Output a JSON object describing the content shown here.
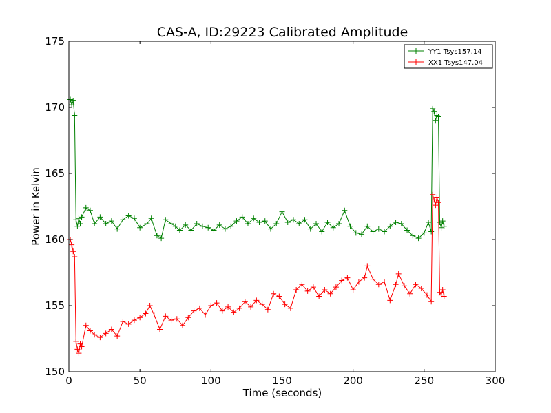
{
  "chart_data": {
    "type": "line",
    "title": "CAS-A, ID:29223 Calibrated Amplitude",
    "xlabel": "Time (seconds)",
    "ylabel": "Power in Kelvin",
    "xlim": [
      0,
      300
    ],
    "ylim": [
      150,
      175
    ],
    "xticks": [
      0,
      50,
      100,
      150,
      200,
      250,
      300
    ],
    "yticks": [
      150,
      155,
      160,
      165,
      170,
      175
    ],
    "grid": false,
    "legend_position": "top-right",
    "marker": "+",
    "series": [
      {
        "name": "YY1 Tsys157.14",
        "color": "#008000",
        "points": [
          [
            1,
            170.6
          ],
          [
            2,
            170.2
          ],
          [
            3,
            170.5
          ],
          [
            4,
            169.4
          ],
          [
            5,
            161.5
          ],
          [
            6,
            161.0
          ],
          [
            7,
            161.6
          ],
          [
            8,
            161.2
          ],
          [
            9,
            161.7
          ],
          [
            12,
            162.4
          ],
          [
            15,
            162.2
          ],
          [
            18,
            161.2
          ],
          [
            22,
            161.7
          ],
          [
            26,
            161.2
          ],
          [
            30,
            161.4
          ],
          [
            34,
            160.8
          ],
          [
            38,
            161.5
          ],
          [
            42,
            161.8
          ],
          [
            46,
            161.6
          ],
          [
            50,
            160.9
          ],
          [
            55,
            161.2
          ],
          [
            58,
            161.6
          ],
          [
            62,
            160.3
          ],
          [
            65,
            160.1
          ],
          [
            68,
            161.5
          ],
          [
            72,
            161.2
          ],
          [
            75,
            161.0
          ],
          [
            78,
            160.7
          ],
          [
            82,
            161.1
          ],
          [
            86,
            160.7
          ],
          [
            90,
            161.2
          ],
          [
            94,
            161.0
          ],
          [
            98,
            160.9
          ],
          [
            102,
            160.7
          ],
          [
            106,
            161.1
          ],
          [
            110,
            160.8
          ],
          [
            114,
            161.0
          ],
          [
            118,
            161.4
          ],
          [
            122,
            161.7
          ],
          [
            126,
            161.2
          ],
          [
            130,
            161.6
          ],
          [
            134,
            161.3
          ],
          [
            138,
            161.4
          ],
          [
            142,
            160.8
          ],
          [
            146,
            161.2
          ],
          [
            150,
            162.1
          ],
          [
            154,
            161.3
          ],
          [
            158,
            161.5
          ],
          [
            162,
            161.2
          ],
          [
            166,
            161.5
          ],
          [
            170,
            160.8
          ],
          [
            174,
            161.2
          ],
          [
            178,
            160.6
          ],
          [
            182,
            161.3
          ],
          [
            186,
            160.9
          ],
          [
            190,
            161.2
          ],
          [
            194,
            162.2
          ],
          [
            198,
            161.0
          ],
          [
            202,
            160.5
          ],
          [
            206,
            160.4
          ],
          [
            210,
            161.0
          ],
          [
            214,
            160.6
          ],
          [
            218,
            160.8
          ],
          [
            222,
            160.6
          ],
          [
            226,
            161.0
          ],
          [
            230,
            161.3
          ],
          [
            234,
            161.2
          ],
          [
            238,
            160.7
          ],
          [
            242,
            160.3
          ],
          [
            246,
            160.1
          ],
          [
            250,
            160.5
          ],
          [
            253,
            161.3
          ],
          [
            255,
            160.6
          ],
          [
            256,
            169.9
          ],
          [
            257,
            169.7
          ],
          [
            258,
            169.0
          ],
          [
            259,
            169.4
          ],
          [
            260,
            169.3
          ],
          [
            261,
            161.3
          ],
          [
            262,
            160.9
          ],
          [
            263,
            161.4
          ],
          [
            264,
            161.0
          ]
        ]
      },
      {
        "name": "XX1 Tsys147.04",
        "color": "#ff0000",
        "points": [
          [
            1,
            160.0
          ],
          [
            2,
            159.6
          ],
          [
            3,
            159.1
          ],
          [
            4,
            158.7
          ],
          [
            5,
            152.3
          ],
          [
            6,
            151.7
          ],
          [
            7,
            151.4
          ],
          [
            8,
            152.1
          ],
          [
            9,
            151.9
          ],
          [
            12,
            153.5
          ],
          [
            15,
            153.1
          ],
          [
            18,
            152.8
          ],
          [
            22,
            152.6
          ],
          [
            26,
            152.9
          ],
          [
            30,
            153.2
          ],
          [
            34,
            152.7
          ],
          [
            38,
            153.8
          ],
          [
            42,
            153.6
          ],
          [
            46,
            153.9
          ],
          [
            50,
            154.1
          ],
          [
            54,
            154.4
          ],
          [
            57,
            155.0
          ],
          [
            60,
            154.3
          ],
          [
            64,
            153.2
          ],
          [
            68,
            154.2
          ],
          [
            72,
            153.9
          ],
          [
            76,
            154.0
          ],
          [
            80,
            153.5
          ],
          [
            84,
            154.1
          ],
          [
            88,
            154.6
          ],
          [
            92,
            154.8
          ],
          [
            96,
            154.3
          ],
          [
            100,
            155.0
          ],
          [
            104,
            155.2
          ],
          [
            108,
            154.6
          ],
          [
            112,
            154.9
          ],
          [
            116,
            154.5
          ],
          [
            120,
            154.8
          ],
          [
            124,
            155.3
          ],
          [
            128,
            154.9
          ],
          [
            132,
            155.4
          ],
          [
            136,
            155.1
          ],
          [
            140,
            154.7
          ],
          [
            144,
            155.9
          ],
          [
            148,
            155.7
          ],
          [
            152,
            155.1
          ],
          [
            156,
            154.8
          ],
          [
            160,
            156.2
          ],
          [
            164,
            156.6
          ],
          [
            168,
            156.1
          ],
          [
            172,
            156.4
          ],
          [
            176,
            155.7
          ],
          [
            180,
            156.2
          ],
          [
            184,
            155.9
          ],
          [
            188,
            156.4
          ],
          [
            192,
            156.9
          ],
          [
            196,
            157.1
          ],
          [
            200,
            156.2
          ],
          [
            204,
            156.8
          ],
          [
            208,
            157.1
          ],
          [
            210,
            158.0
          ],
          [
            214,
            157.0
          ],
          [
            218,
            156.6
          ],
          [
            222,
            156.8
          ],
          [
            226,
            155.4
          ],
          [
            230,
            156.6
          ],
          [
            232,
            157.4
          ],
          [
            236,
            156.5
          ],
          [
            240,
            155.9
          ],
          [
            244,
            156.6
          ],
          [
            248,
            156.3
          ],
          [
            252,
            155.8
          ],
          [
            255,
            155.3
          ],
          [
            256,
            163.4
          ],
          [
            257,
            163.0
          ],
          [
            258,
            162.6
          ],
          [
            259,
            163.2
          ],
          [
            260,
            162.8
          ],
          [
            261,
            156.0
          ],
          [
            262,
            155.8
          ],
          [
            263,
            156.2
          ],
          [
            264,
            155.7
          ]
        ]
      }
    ]
  }
}
